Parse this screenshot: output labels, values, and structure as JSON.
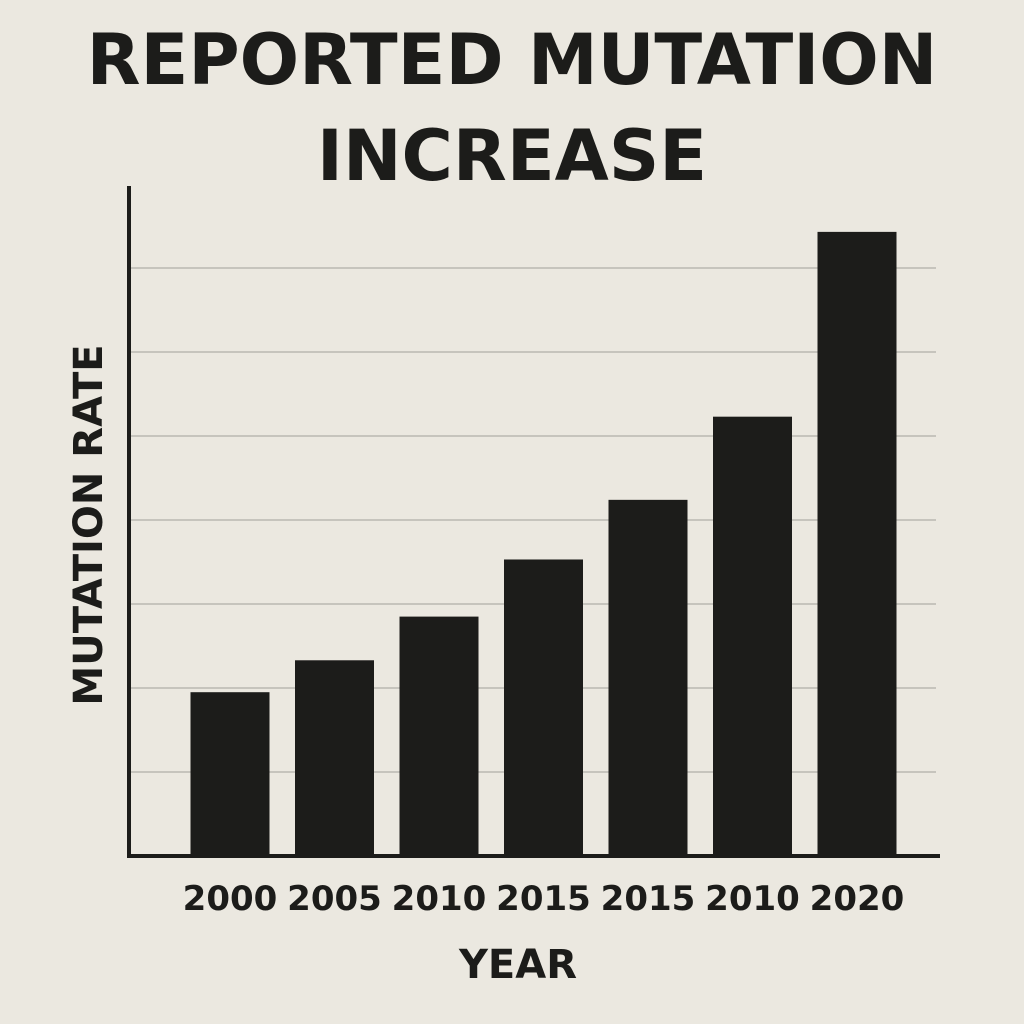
{
  "chart_data": {
    "type": "bar",
    "title_lines": [
      "REPORTED MUTATION",
      "INCREASE"
    ],
    "xlabel": "YEAR",
    "ylabel": "MUTATION RATE",
    "categories": [
      "2000",
      "2005",
      "2010",
      "2015",
      "2015",
      "2010",
      "2020"
    ],
    "values": [
      1.95,
      2.33,
      2.85,
      3.53,
      4.24,
      5.23,
      7.43
    ],
    "ylim": [
      0,
      8
    ],
    "grid": true,
    "legend": "none",
    "colors": {
      "bar": "#1c1c1a",
      "grid": "#c6c4bd",
      "background": "#ebe8e0",
      "axis": "#1c1c1a"
    }
  }
}
